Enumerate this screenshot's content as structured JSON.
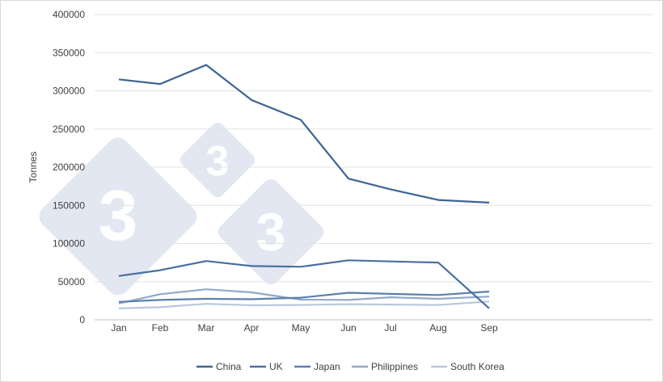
{
  "chart_data": {
    "type": "line",
    "title": "",
    "xlabel": "",
    "ylabel": "Tonnes",
    "categories": [
      "Jan",
      "Feb",
      "Mar",
      "Apr",
      "May",
      "Jun",
      "Jul",
      "Aug",
      "Sep"
    ],
    "ylim": [
      0,
      400000
    ],
    "yticks": [
      "0",
      "50000",
      "100000",
      "150000",
      "200000",
      "250000",
      "300000",
      "350000",
      "400000"
    ],
    "grid": true,
    "legend_position": "bottom",
    "watermark": "333",
    "series": [
      {
        "name": "China",
        "color": "#3d6491",
        "values": [
          315000,
          309000,
          334000,
          288000,
          262000,
          185000,
          171000,
          157000,
          153500
        ]
      },
      {
        "name": "UK",
        "color": "#4a6fa0",
        "values": [
          57500,
          65000,
          77000,
          70500,
          69500,
          78000,
          76500,
          75000,
          15000
        ]
      },
      {
        "name": "Japan",
        "color": "#5b80ad",
        "values": [
          23500,
          26000,
          27500,
          27000,
          29000,
          35500,
          34000,
          32500,
          37000
        ]
      },
      {
        "name": "Philippines",
        "color": "#91a9c8",
        "values": [
          21500,
          33500,
          40000,
          36000,
          26500,
          26000,
          29500,
          27500,
          30500
        ]
      },
      {
        "name": "South Korea",
        "color": "#b8c8de",
        "values": [
          15000,
          16500,
          21000,
          19000,
          19500,
          20500,
          20000,
          19500,
          24000
        ]
      }
    ]
  }
}
